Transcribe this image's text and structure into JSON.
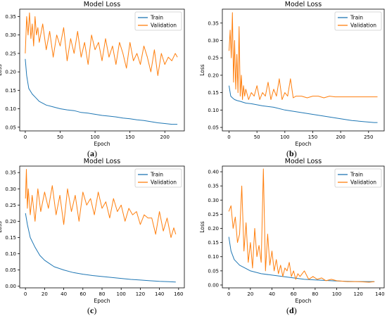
{
  "chart_data": [
    {
      "id": "a",
      "caption": "a",
      "type": "line",
      "title": "Model Loss",
      "xlabel": "Epoch",
      "ylabel": "Loss",
      "xlim": [
        -8,
        228
      ],
      "ylim": [
        0.04,
        0.37
      ],
      "xticks": [
        0,
        50,
        100,
        150,
        200
      ],
      "yticks": [
        0.05,
        0.1,
        0.15,
        0.2,
        0.25,
        0.3,
        0.35
      ],
      "yfmt": 2,
      "legend": "top-right",
      "series": [
        {
          "name": "Train",
          "color": "#1f77b4",
          "x": [
            0,
            2,
            5,
            10,
            15,
            20,
            30,
            40,
            50,
            60,
            70,
            80,
            90,
            100,
            110,
            120,
            130,
            140,
            150,
            160,
            170,
            180,
            190,
            200,
            210,
            218
          ],
          "y": [
            0.235,
            0.19,
            0.155,
            0.14,
            0.13,
            0.12,
            0.11,
            0.105,
            0.1,
            0.097,
            0.095,
            0.09,
            0.088,
            0.085,
            0.082,
            0.08,
            0.078,
            0.075,
            0.073,
            0.07,
            0.068,
            0.065,
            0.062,
            0.06,
            0.058,
            0.058
          ]
        },
        {
          "name": "Validation",
          "color": "#ff7f0e",
          "x": [
            0,
            2,
            4,
            6,
            8,
            10,
            12,
            14,
            16,
            18,
            20,
            25,
            30,
            35,
            40,
            45,
            50,
            55,
            60,
            65,
            70,
            75,
            80,
            85,
            90,
            95,
            100,
            105,
            110,
            115,
            120,
            125,
            130,
            135,
            140,
            145,
            150,
            155,
            160,
            165,
            170,
            175,
            180,
            185,
            190,
            195,
            200,
            205,
            210,
            215,
            218
          ],
          "y": [
            0.25,
            0.35,
            0.3,
            0.36,
            0.29,
            0.33,
            0.27,
            0.35,
            0.3,
            0.32,
            0.28,
            0.33,
            0.26,
            0.31,
            0.24,
            0.3,
            0.27,
            0.32,
            0.23,
            0.29,
            0.25,
            0.31,
            0.24,
            0.28,
            0.22,
            0.3,
            0.26,
            0.28,
            0.23,
            0.29,
            0.24,
            0.27,
            0.22,
            0.28,
            0.25,
            0.21,
            0.28,
            0.23,
            0.25,
            0.22,
            0.27,
            0.24,
            0.2,
            0.26,
            0.19,
            0.25,
            0.22,
            0.24,
            0.23,
            0.25,
            0.24
          ]
        }
      ]
    },
    {
      "id": "b",
      "caption": "b",
      "type": "line",
      "title": "Model Loss",
      "xlabel": "Epoch",
      "ylabel": "Loss",
      "xlim": [
        -12,
        278
      ],
      "ylim": [
        0.04,
        0.39
      ],
      "xticks": [
        0,
        50,
        100,
        150,
        200,
        250
      ],
      "yticks": [
        0.05,
        0.1,
        0.15,
        0.2,
        0.25,
        0.3,
        0.35
      ],
      "yfmt": 2,
      "legend": "top-right",
      "series": [
        {
          "name": "Train",
          "color": "#1f77b4",
          "x": [
            0,
            3,
            6,
            10,
            15,
            20,
            30,
            40,
            60,
            80,
            100,
            120,
            140,
            160,
            180,
            200,
            220,
            240,
            260,
            266
          ],
          "y": [
            0.17,
            0.14,
            0.135,
            0.13,
            0.127,
            0.125,
            0.12,
            0.118,
            0.112,
            0.108,
            0.1,
            0.095,
            0.09,
            0.085,
            0.08,
            0.075,
            0.07,
            0.067,
            0.064,
            0.064
          ]
        },
        {
          "name": "Validation",
          "color": "#ff7f0e",
          "x": [
            0,
            2,
            4,
            6,
            8,
            10,
            12,
            14,
            16,
            18,
            20,
            22,
            24,
            26,
            28,
            30,
            35,
            40,
            45,
            50,
            55,
            60,
            65,
            70,
            75,
            80,
            85,
            90,
            95,
            100,
            105,
            110,
            115,
            120,
            130,
            140,
            150,
            160,
            170,
            180,
            190,
            200,
            220,
            240,
            266
          ],
          "y": [
            0.27,
            0.33,
            0.25,
            0.38,
            0.18,
            0.3,
            0.16,
            0.26,
            0.15,
            0.34,
            0.14,
            0.2,
            0.13,
            0.17,
            0.14,
            0.16,
            0.13,
            0.15,
            0.14,
            0.17,
            0.13,
            0.15,
            0.14,
            0.18,
            0.13,
            0.16,
            0.14,
            0.19,
            0.13,
            0.15,
            0.14,
            0.19,
            0.135,
            0.14,
            0.14,
            0.135,
            0.14,
            0.14,
            0.135,
            0.14,
            0.138,
            0.138,
            0.138,
            0.138,
            0.138
          ]
        }
      ]
    },
    {
      "id": "c",
      "caption": "c",
      "type": "line",
      "title": "Model Loss",
      "xlabel": "Epoch",
      "ylabel": "Loss",
      "xlim": [
        -6,
        166
      ],
      "ylim": [
        -0.005,
        0.37
      ],
      "xticks": [
        0,
        20,
        40,
        60,
        80,
        100,
        120,
        140,
        160
      ],
      "yticks": [
        0.0,
        0.05,
        0.1,
        0.15,
        0.2,
        0.25,
        0.3,
        0.35
      ],
      "yfmt": 2,
      "legend": "top-right",
      "series": [
        {
          "name": "Train",
          "color": "#1f77b4",
          "x": [
            0,
            2,
            5,
            10,
            15,
            20,
            25,
            30,
            40,
            50,
            60,
            70,
            80,
            90,
            100,
            110,
            120,
            130,
            140,
            150,
            157
          ],
          "y": [
            0.225,
            0.19,
            0.15,
            0.12,
            0.095,
            0.08,
            0.07,
            0.06,
            0.05,
            0.042,
            0.037,
            0.033,
            0.03,
            0.027,
            0.024,
            0.021,
            0.019,
            0.017,
            0.015,
            0.014,
            0.013
          ]
        },
        {
          "name": "Validation",
          "color": "#ff7f0e",
          "x": [
            0,
            1,
            2,
            3,
            5,
            7,
            10,
            13,
            16,
            20,
            24,
            28,
            32,
            36,
            40,
            44,
            48,
            52,
            56,
            60,
            64,
            68,
            72,
            76,
            80,
            84,
            88,
            92,
            96,
            100,
            104,
            108,
            112,
            116,
            120,
            124,
            128,
            132,
            136,
            140,
            144,
            148,
            152,
            155,
            157
          ],
          "y": [
            0.27,
            0.36,
            0.24,
            0.3,
            0.22,
            0.28,
            0.2,
            0.3,
            0.23,
            0.29,
            0.24,
            0.31,
            0.22,
            0.28,
            0.19,
            0.3,
            0.23,
            0.28,
            0.2,
            0.29,
            0.25,
            0.27,
            0.22,
            0.29,
            0.24,
            0.26,
            0.21,
            0.27,
            0.23,
            0.25,
            0.2,
            0.24,
            0.22,
            0.23,
            0.19,
            0.22,
            0.21,
            0.21,
            0.16,
            0.23,
            0.17,
            0.21,
            0.15,
            0.18,
            0.16
          ]
        }
      ]
    },
    {
      "id": "d",
      "caption": "d",
      "type": "line",
      "title": "Model Loss",
      "xlabel": "Epoch",
      "ylabel": "Loss",
      "xlim": [
        -6,
        144
      ],
      "ylim": [
        -0.01,
        0.42
      ],
      "xticks": [
        0,
        20,
        40,
        60,
        80,
        100,
        120,
        140
      ],
      "yticks": [
        0.0,
        0.05,
        0.1,
        0.15,
        0.2,
        0.25,
        0.3,
        0.35,
        0.4
      ],
      "yfmt": 2,
      "legend": "top-right",
      "series": [
        {
          "name": "Train",
          "color": "#1f77b4",
          "x": [
            0,
            2,
            5,
            10,
            15,
            20,
            30,
            40,
            50,
            60,
            70,
            80,
            90,
            100,
            110,
            120,
            130,
            135
          ],
          "y": [
            0.17,
            0.12,
            0.09,
            0.07,
            0.06,
            0.05,
            0.04,
            0.035,
            0.03,
            0.025,
            0.02,
            0.018,
            0.016,
            0.014,
            0.013,
            0.012,
            0.012,
            0.012
          ]
        },
        {
          "name": "Validation",
          "color": "#ff7f0e",
          "x": [
            0,
            2,
            4,
            6,
            8,
            10,
            12,
            14,
            16,
            18,
            20,
            22,
            24,
            26,
            28,
            30,
            32,
            34,
            36,
            38,
            40,
            42,
            44,
            46,
            48,
            50,
            52,
            54,
            56,
            58,
            60,
            62,
            64,
            66,
            70,
            74,
            78,
            82,
            86,
            90,
            95,
            100,
            110,
            120,
            130,
            135
          ],
          "y": [
            0.26,
            0.28,
            0.2,
            0.24,
            0.15,
            0.18,
            0.35,
            0.12,
            0.22,
            0.08,
            0.15,
            0.06,
            0.2,
            0.1,
            0.14,
            0.08,
            0.41,
            0.05,
            0.18,
            0.07,
            0.12,
            0.05,
            0.09,
            0.04,
            0.07,
            0.03,
            0.06,
            0.05,
            0.08,
            0.03,
            0.05,
            0.02,
            0.04,
            0.03,
            0.05,
            0.02,
            0.03,
            0.02,
            0.025,
            0.015,
            0.02,
            0.015,
            0.012,
            0.012,
            0.01,
            0.012
          ]
        }
      ]
    }
  ]
}
